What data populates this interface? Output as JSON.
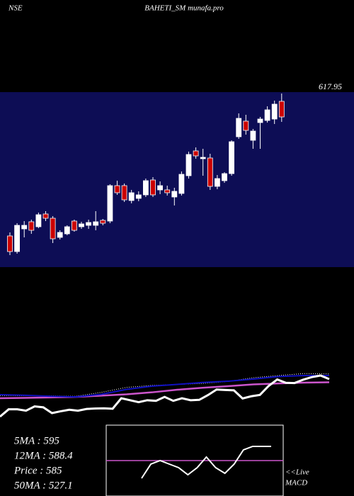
{
  "chart_data": {
    "type": "candlestick",
    "exchange": "NSE",
    "title": "BAHETI_SM munafa.pro",
    "price_label": "617.95",
    "ylim": [
      380,
      627
    ],
    "open": [
      424,
      402,
      434,
      444,
      437,
      455,
      449,
      422,
      427,
      445,
      437,
      439,
      439,
      446,
      445,
      495,
      495,
      474,
      477,
      482,
      503,
      489,
      489,
      479,
      484,
      509,
      544,
      533,
      534,
      494,
      502,
      512,
      564,
      586,
      559,
      584,
      587,
      589,
      614
    ],
    "high": [
      429,
      442,
      445,
      447,
      457,
      459,
      452,
      432,
      439,
      447,
      444,
      447,
      459,
      448,
      497,
      502,
      498,
      489,
      487,
      505,
      507,
      501,
      495,
      492,
      515,
      543,
      549,
      547,
      540,
      510,
      514,
      559,
      597,
      595,
      575,
      592,
      607,
      615,
      625
    ],
    "low": [
      397,
      399,
      422,
      427,
      435,
      445,
      414,
      419,
      425,
      430,
      434,
      434,
      432,
      439,
      442,
      482,
      472,
      470,
      473,
      479,
      479,
      483,
      481,
      467,
      481,
      505,
      533,
      509,
      489,
      490,
      499,
      509,
      561,
      567,
      547,
      547,
      584,
      582,
      585
    ],
    "close": [
      402,
      439,
      439,
      432,
      454,
      449,
      420,
      429,
      437,
      432,
      441,
      443,
      444,
      442,
      495,
      485,
      475,
      485,
      482,
      502,
      482,
      495,
      485,
      487,
      511,
      539,
      537,
      535,
      494,
      505,
      512,
      557,
      590,
      573,
      572,
      589,
      602,
      610,
      592
    ],
    "colors": {
      "up": "#ffffff",
      "down": "#cc0000",
      "panel": "#0d0d55",
      "fast_ma": "#1010c0",
      "slow_ma": "#cc55cc",
      "dotted_ma": "#ffffff",
      "macd": "#ffffff",
      "signal": "#cc55cc"
    },
    "fast_ma": [
      513,
      510,
      505,
      502,
      515,
      540,
      556,
      565,
      575,
      581,
      592,
      605,
      610,
      610
    ],
    "slow_ma": [
      495,
      497,
      499,
      502,
      508,
      515,
      525,
      538,
      548,
      556,
      565,
      570,
      574,
      576
    ],
    "dotted_ma": [
      509,
      508,
      507,
      505,
      525,
      550,
      560,
      565,
      570,
      580,
      599,
      610,
      620,
      618
    ],
    "indicators": [
      "5MA : 595",
      "12MA : 588.4",
      "Price  : 585",
      "50MA : 527.1"
    ],
    "live_label": "<<Live",
    "macd_label": "MACD",
    "macd": [
      -25,
      -5,
      0,
      -5,
      -10,
      -20,
      -10,
      5,
      -10,
      -18,
      -5,
      15,
      20,
      20,
      20
    ],
    "signal": 0
  }
}
